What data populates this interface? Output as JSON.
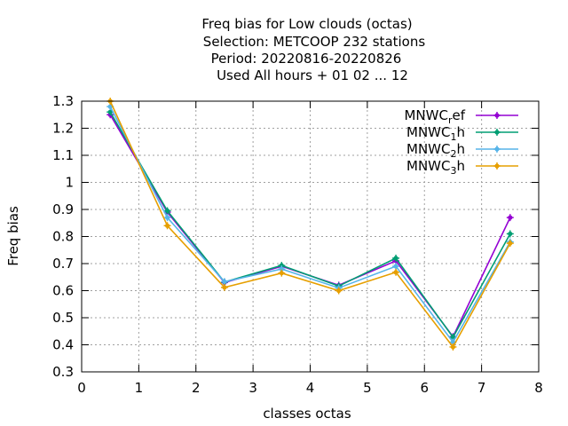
{
  "chart_data": {
    "type": "line",
    "title_lines": [
      "Freq bias  for Low clouds (octas)",
      "Selection: METCOOP    232 stations",
      "Period: 20220816-20220826",
      "Used  All hours  + 01 02 ... 12"
    ],
    "xlabel": "classes octas",
    "ylabel": "Freq bias",
    "xlim": [
      0,
      8
    ],
    "ylim": [
      0.3,
      1.3
    ],
    "xticks": [
      "0",
      "1",
      "2",
      "3",
      "4",
      "5",
      "6",
      "7",
      "8"
    ],
    "yticks": [
      "0.3",
      "0.4",
      "0.5",
      "0.6",
      "0.7",
      "0.8",
      "0.9",
      "1",
      "1.1",
      "1.2",
      "1.3"
    ],
    "grid": true,
    "legend_position": "top-right",
    "x": [
      0.5,
      1.5,
      2.5,
      3.5,
      4.5,
      5.5,
      6.5,
      7.5
    ],
    "series": [
      {
        "name": "MNWC_ref",
        "label_main": "MNWC",
        "label_sub": "r",
        "label_tail": "ef",
        "color": "#9400d3",
        "values": [
          1.25,
          0.89,
          0.63,
          0.69,
          0.62,
          0.71,
          0.43,
          0.87
        ]
      },
      {
        "name": "MNWC_1h",
        "label_main": "MNWC",
        "label_sub": "1",
        "label_tail": "h",
        "color": "#009e73",
        "values": [
          1.26,
          0.895,
          0.632,
          0.693,
          0.617,
          0.72,
          0.428,
          0.81
        ]
      },
      {
        "name": "MNWC_2h",
        "label_main": "MNWC",
        "label_sub": "2",
        "label_tail": "h",
        "color": "#56b4e9",
        "values": [
          1.28,
          0.87,
          0.633,
          0.68,
          0.61,
          0.69,
          0.41,
          0.78
        ]
      },
      {
        "name": "MNWC_3h",
        "label_main": "MNWC",
        "label_sub": "3",
        "label_tail": "h",
        "color": "#e69f00",
        "values": [
          1.3,
          0.84,
          0.612,
          0.665,
          0.6,
          0.668,
          0.392,
          0.775
        ]
      }
    ]
  }
}
